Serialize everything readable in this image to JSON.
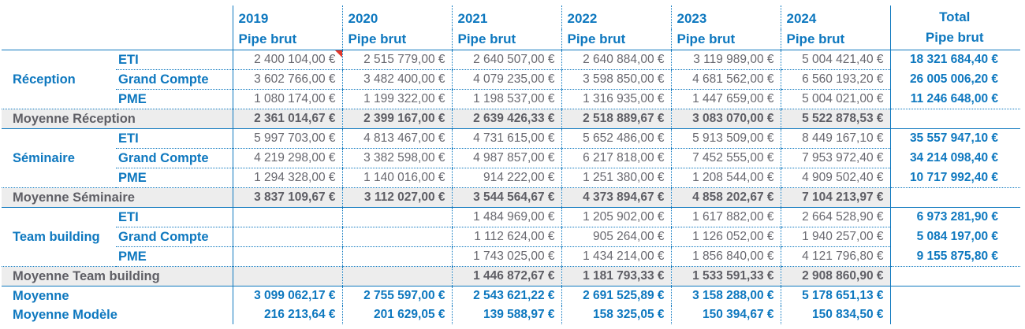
{
  "header": {
    "years": [
      "2019",
      "2020",
      "2021",
      "2022",
      "2023",
      "2024"
    ],
    "subheader": "Pipe brut",
    "total_title": "Total",
    "total_subtitle": "Pipe brut"
  },
  "rows": [
    {
      "kind": "data",
      "group_label": "",
      "sub_label": "ETI",
      "comment": true,
      "values": [
        "2 400 104,00 €",
        "2 515 779,00 €",
        "2 640 507,00 €",
        "2 640 884,00 €",
        "3 119 989,00 €",
        "5 004 421,40 €"
      ],
      "total": "18 321 684,40 €"
    },
    {
      "kind": "data",
      "group_label": "Réception",
      "sub_label": "Grand Compte",
      "values": [
        "3 602 766,00 €",
        "3 482 400,00 €",
        "4 079 235,00 €",
        "3 598 850,00 €",
        "4 681 562,00 €",
        "6 560 193,20 €"
      ],
      "total": "26 005 006,20 €"
    },
    {
      "kind": "data",
      "last": true,
      "group_label": "",
      "sub_label": "PME",
      "values": [
        "1 080 174,00 €",
        "1 199 322,00 €",
        "1 198 537,00 €",
        "1 316 935,00 €",
        "1 447 659,00 €",
        "5 004 021,00 €"
      ],
      "total": "11 246 648,00 €"
    },
    {
      "kind": "average",
      "label": "Moyenne Réception",
      "values": [
        "2 361 014,67 €",
        "2 399 167,00 €",
        "2 639 426,33 €",
        "2 518 889,67 €",
        "3 083 070,00 €",
        "5 522 878,53 €"
      ]
    },
    {
      "kind": "data",
      "group_label": "",
      "sub_label": "ETI",
      "values": [
        "5 997 703,00 €",
        "4 813 467,00 €",
        "4 731 615,00 €",
        "5 652 486,00 €",
        "5 913 509,00 €",
        "8 449 167,10 €"
      ],
      "total": "35 557 947,10 €"
    },
    {
      "kind": "data",
      "group_label": "Séminaire",
      "sub_label": "Grand Compte",
      "values": [
        "4 219 298,00 €",
        "3 382 598,00 €",
        "4 987 857,00 €",
        "6 217 818,00 €",
        "7 452 555,00 €",
        "7 953 972,40 €"
      ],
      "total": "34 214 098,40 €"
    },
    {
      "kind": "data",
      "last": true,
      "group_label": "",
      "sub_label": "PME",
      "values": [
        "1 294 328,00 €",
        "1 140 016,00 €",
        "914 222,00 €",
        "1 251 380,00 €",
        "1 208 544,00 €",
        "4 909 502,40 €"
      ],
      "total": "10 717 992,40 €"
    },
    {
      "kind": "average",
      "label": "Moyenne Séminaire",
      "values": [
        "3 837 109,67 €",
        "3 112 027,00 €",
        "3 544 564,67 €",
        "4 373 894,67 €",
        "4 858 202,67 €",
        "7 104 213,97 €"
      ]
    },
    {
      "kind": "data",
      "group_label": "",
      "sub_label": "ETI",
      "values": [
        "",
        "",
        "1 484 969,00 €",
        "1 205 902,00 €",
        "1 617 882,00 €",
        "2 664 528,90 €"
      ],
      "total": "6 973 281,90 €"
    },
    {
      "kind": "data",
      "group_label": "Team building",
      "sub_label": "Grand Compte",
      "values": [
        "",
        "",
        "1 112 624,00 €",
        "905 264,00 €",
        "1 126 052,00 €",
        "1 940 257,00 €"
      ],
      "total": "5 084 197,00 €"
    },
    {
      "kind": "data",
      "last": true,
      "group_label": "",
      "sub_label": "PME",
      "values": [
        "",
        "",
        "1 743 025,00 €",
        "1 434 214,00 €",
        "1 856 840,00 €",
        "4 121 796,80 €"
      ],
      "total": "9 155 875,80 €"
    },
    {
      "kind": "average",
      "label": "Moyenne Team building",
      "values": [
        "",
        "",
        "1 446 872,67 €",
        "1 181 793,33 €",
        "1 533 591,33 €",
        "2 908 860,90 €"
      ]
    },
    {
      "kind": "footer",
      "label": "Moyenne",
      "values": [
        "3 099 062,17 €",
        "2 755 597,00 €",
        "2 543 621,22 €",
        "2 691 525,89 €",
        "3 158 288,00 €",
        "5 178 651,13 €"
      ]
    },
    {
      "kind": "footer",
      "label": "Moyenne Modèle",
      "values": [
        "216 213,64 €",
        "201 629,05 €",
        "139 588,97 €",
        "158 325,05 €",
        "150 394,67 €",
        "150 834,50 €"
      ]
    }
  ],
  "icons": {
    "comment_marker": "red-corner-triangle-icon"
  },
  "colors": {
    "accent_blue": "#0e78bf",
    "value_gray": "#68686f",
    "average_band_fill": "#ededed",
    "comment_red": "#e3372a"
  }
}
